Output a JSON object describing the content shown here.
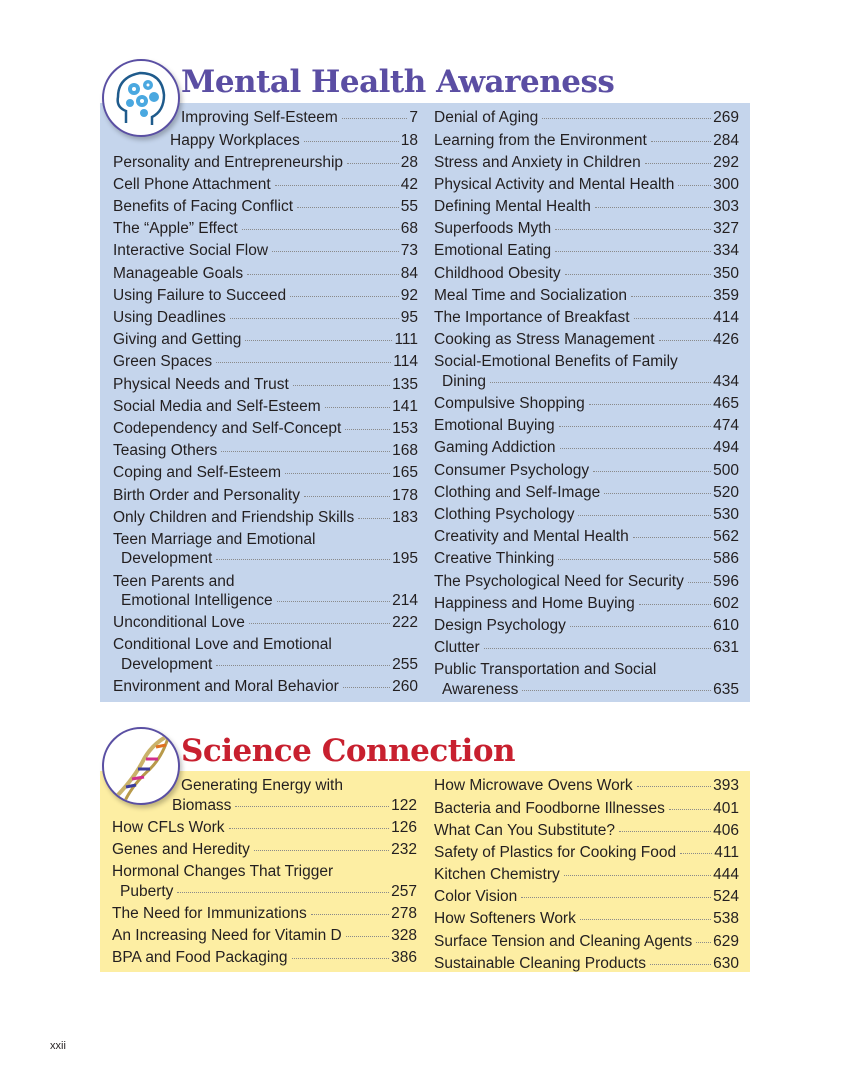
{
  "mental_health": {
    "title": "Mental Health Awareness",
    "title_color": "#5b4ea3",
    "bg_color": "#c5d5ec",
    "icon": "head-gears-icon",
    "left": [
      {
        "t": "Improving Self-Esteem",
        "p": "7"
      },
      {
        "t": "Happy Workplaces",
        "p": "18"
      },
      {
        "t": "Personality and Entrepreneurship",
        "p": "28"
      },
      {
        "t": "Cell Phone Attachment",
        "p": "42"
      },
      {
        "t": "Benefits of Facing Conflict",
        "p": "55"
      },
      {
        "t": "The “Apple” Effect",
        "p": "68"
      },
      {
        "t": "Interactive Social Flow",
        "p": "73"
      },
      {
        "t": "Manageable Goals",
        "p": "84"
      },
      {
        "t": "Using Failure to Succeed",
        "p": "92"
      },
      {
        "t": "Using Deadlines",
        "p": "95"
      },
      {
        "t": "Giving and Getting",
        "p": "111"
      },
      {
        "t": "Green Spaces",
        "p": "114"
      },
      {
        "t": "Physical Needs and Trust",
        "p": "135"
      },
      {
        "t": "Social Media and Self-Esteem",
        "p": "141"
      },
      {
        "t": "Codependency and Self-Concept",
        "p": "153"
      },
      {
        "t": "Teasing Others",
        "p": "168"
      },
      {
        "t": "Coping and Self-Esteem",
        "p": "165"
      },
      {
        "t": "Birth Order and Personality",
        "p": "178"
      },
      {
        "t": "Only Children and Friendship Skills",
        "p": "183"
      },
      {
        "t": "Teen Marriage and Emotional",
        "t2": "Development",
        "p": "195"
      },
      {
        "t": "Teen Parents and",
        "t2": "Emotional Intelligence",
        "p": "214"
      },
      {
        "t": "Unconditional Love",
        "p": "222"
      },
      {
        "t": "Conditional Love and Emotional",
        "t2": "Development",
        "p": "255"
      },
      {
        "t": "Environment and Moral Behavior",
        "p": "260"
      }
    ],
    "right": [
      {
        "t": "Denial of Aging",
        "p": "269"
      },
      {
        "t": "Learning from the Environment",
        "p": "284"
      },
      {
        "t": "Stress and Anxiety in Children",
        "p": "292"
      },
      {
        "t": "Physical Activity and Mental Health",
        "p": "300"
      },
      {
        "t": "Defining Mental Health",
        "p": "303"
      },
      {
        "t": "Superfoods Myth",
        "p": "327"
      },
      {
        "t": "Emotional Eating",
        "p": "334"
      },
      {
        "t": "Childhood Obesity",
        "p": "350"
      },
      {
        "t": "Meal Time and Socialization",
        "p": "359"
      },
      {
        "t": "The Importance of Breakfast",
        "p": "414"
      },
      {
        "t": "Cooking as Stress Management",
        "p": "426"
      },
      {
        "t": "Social-Emotional Benefits of Family",
        "t2": "Dining",
        "p": "434"
      },
      {
        "t": "Compulsive Shopping",
        "p": "465"
      },
      {
        "t": "Emotional Buying",
        "p": "474"
      },
      {
        "t": "Gaming Addiction",
        "p": "494"
      },
      {
        "t": "Consumer Psychology",
        "p": "500"
      },
      {
        "t": "Clothing and Self-Image",
        "p": "520"
      },
      {
        "t": "Clothing Psychology",
        "p": "530"
      },
      {
        "t": "Creativity and Mental Health",
        "p": "562"
      },
      {
        "t": "Creative Thinking",
        "p": "586"
      },
      {
        "t": "The Psychological Need for Security",
        "p": "596"
      },
      {
        "t": "Happiness and Home Buying",
        "p": "602"
      },
      {
        "t": "Design Psychology",
        "p": "610"
      },
      {
        "t": "Clutter",
        "p": "631"
      },
      {
        "t": "Public Transportation and Social",
        "t2": "Awareness",
        "p": "635"
      }
    ]
  },
  "science": {
    "title": "Science Connection",
    "title_color": "#c8202f",
    "bg_color": "#fdeea3",
    "icon": "dna-helix-icon",
    "left": [
      {
        "t": "Generating Energy with",
        "t2": "Biomass",
        "p": "122"
      },
      {
        "t": "How CFLs Work",
        "p": "126"
      },
      {
        "t": "Genes and Heredity",
        "p": "232"
      },
      {
        "t": "Hormonal Changes That Trigger",
        "t2": "Puberty",
        "p": "257"
      },
      {
        "t": "The Need for Immunizations",
        "p": "278"
      },
      {
        "t": "An Increasing Need for Vitamin D",
        "p": "328"
      },
      {
        "t": "BPA and Food Packaging",
        "p": "386"
      }
    ],
    "right": [
      {
        "t": "How Microwave Ovens Work",
        "p": "393"
      },
      {
        "t": "Bacteria and Foodborne Illnesses",
        "p": "401"
      },
      {
        "t": "What Can You Substitute?",
        "p": "406"
      },
      {
        "t": "Safety of Plastics for Cooking Food",
        "p": "411"
      },
      {
        "t": "Kitchen Chemistry",
        "p": "444"
      },
      {
        "t": "Color Vision",
        "p": "524"
      },
      {
        "t": "How Softeners Work",
        "p": "538"
      },
      {
        "t": "Surface Tension and Cleaning Agents",
        "p": "629"
      },
      {
        "t": "Sustainable Cleaning Products",
        "p": "630"
      }
    ]
  },
  "folio": "xxii"
}
